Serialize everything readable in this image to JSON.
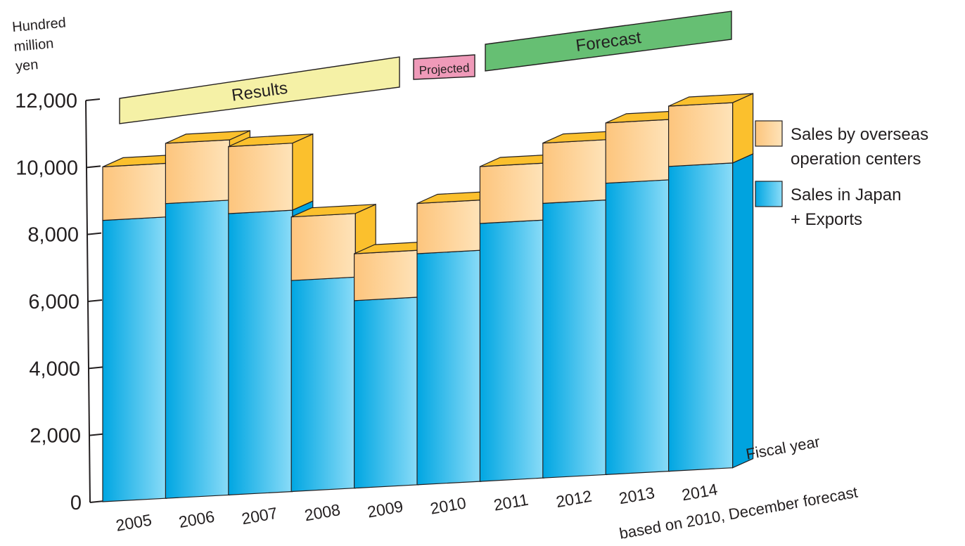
{
  "chart_data": {
    "type": "bar",
    "stacked": true,
    "three_d": true,
    "title": "",
    "ylabel": "Hundred million yen",
    "ylabel_lines": [
      "Hundred",
      "million",
      "yen"
    ],
    "xlabel": "Fiscal year",
    "ylim": [
      0,
      12000
    ],
    "yticks": [
      "0",
      "2,000",
      "4,000",
      "6,000",
      "8,000",
      "10,000",
      "12,000"
    ],
    "categories": [
      "2005",
      "2006",
      "2007",
      "2008",
      "2009",
      "2010",
      "2011",
      "2012",
      "2013",
      "2014"
    ],
    "series": [
      {
        "name_lines": [
          "Sales in Japan",
          "+ Exports"
        ],
        "color": "#1ab7ea",
        "values": [
          8400,
          8800,
          8400,
          6300,
          5600,
          6900,
          7700,
          8200,
          8700,
          9100
        ]
      },
      {
        "name_lines": [
          "Sales by overseas",
          "operation centers"
        ],
        "color": "#fdd08a",
        "values": [
          1600,
          1800,
          2000,
          1900,
          1400,
          1500,
          1700,
          1800,
          1800,
          1800
        ]
      }
    ],
    "period_banners": [
      {
        "label": "Results",
        "color": "#f5f1a6"
      },
      {
        "label": "Projected",
        "color": "#ef9ab9"
      },
      {
        "label": "Forecast",
        "color": "#66bf73"
      }
    ],
    "footnote": "based on 2010, December forecast",
    "legend_position": "right"
  }
}
